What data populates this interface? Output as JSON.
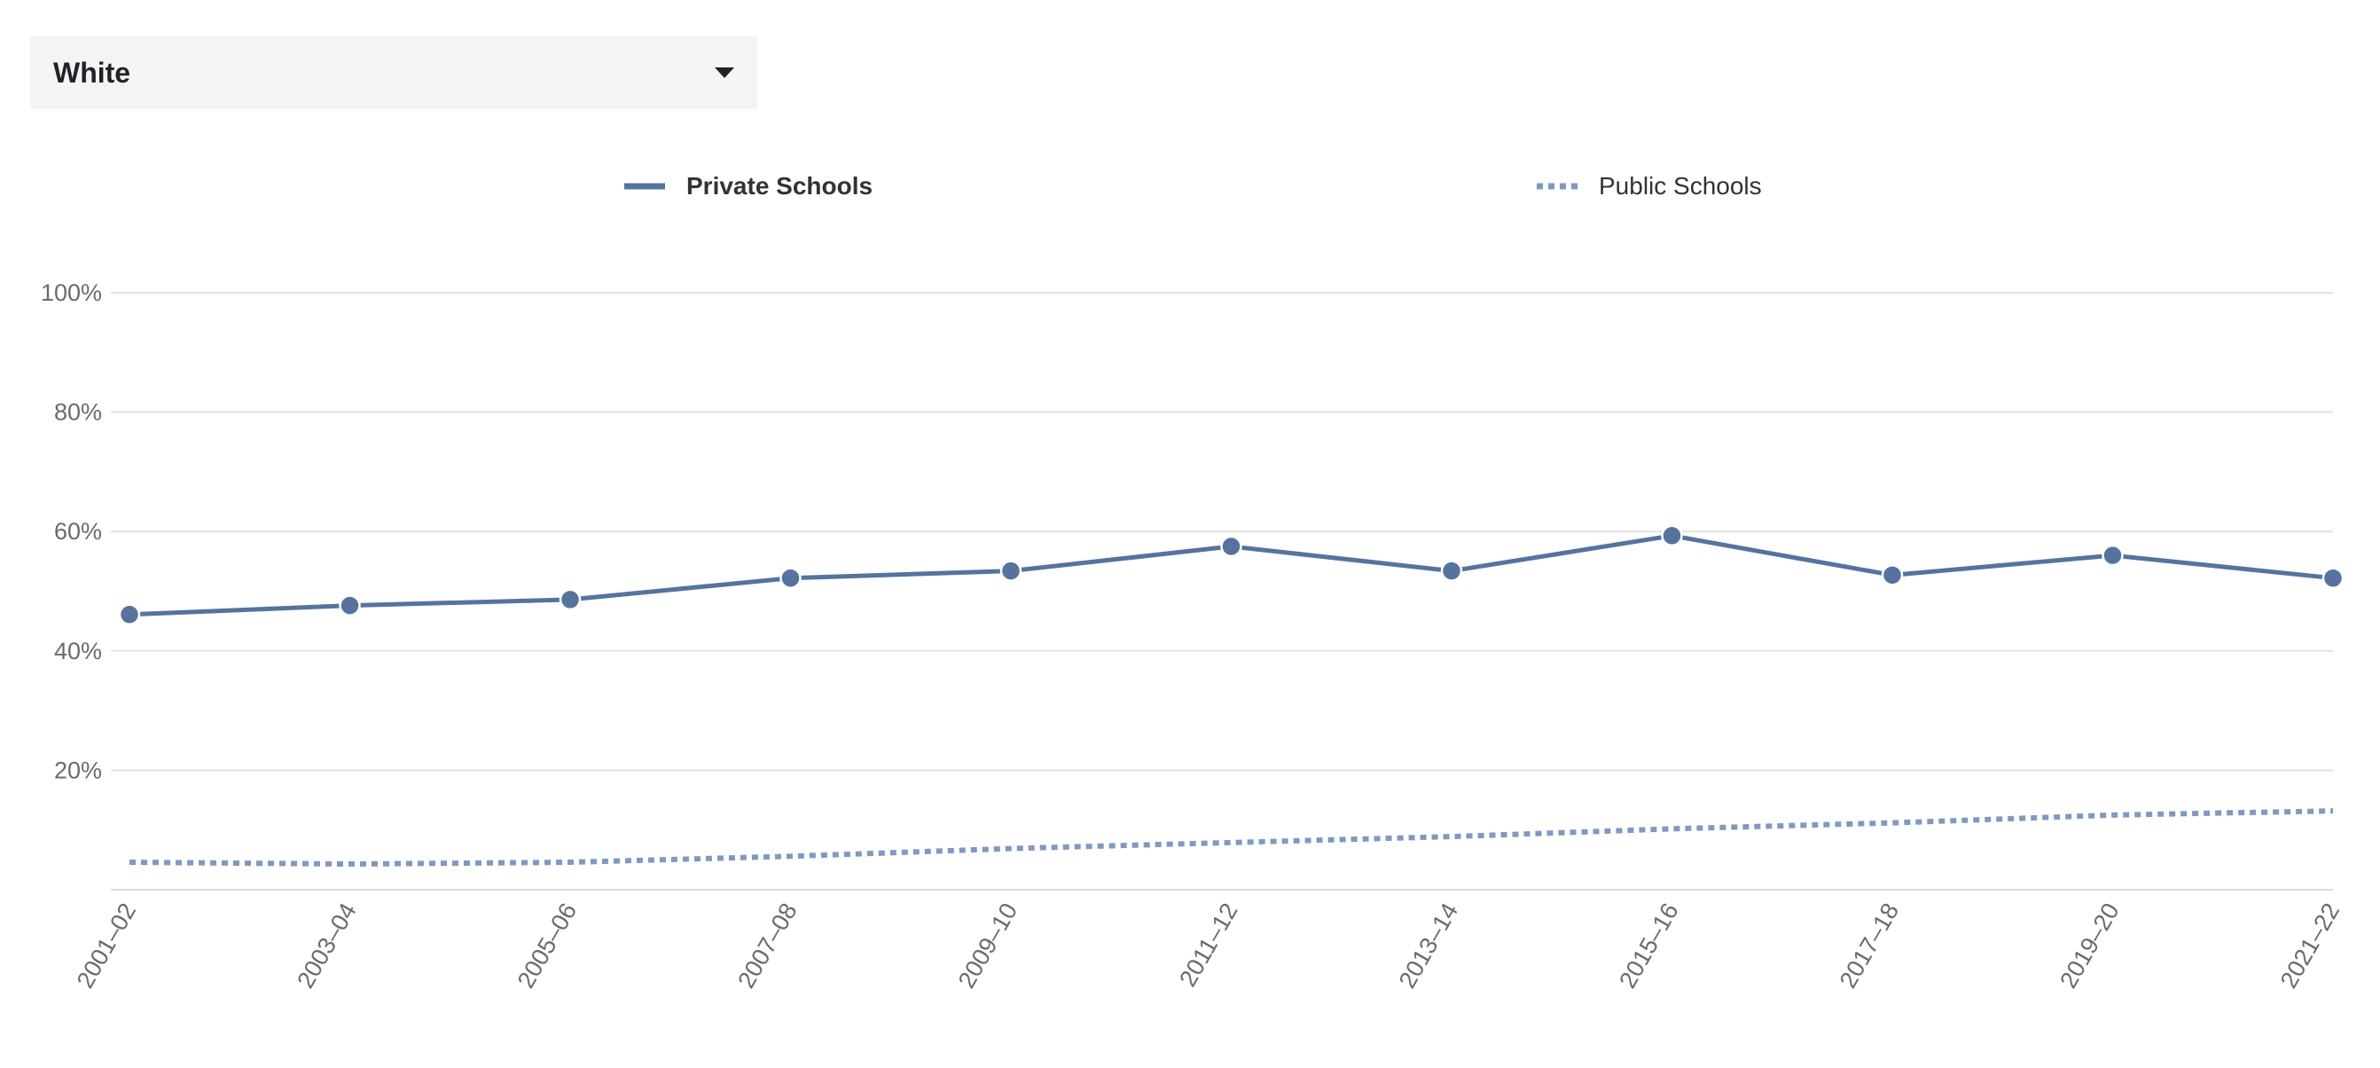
{
  "filter": {
    "selected": "White"
  },
  "chart_data": {
    "type": "line",
    "title": "",
    "xlabel": "",
    "ylabel": "",
    "categories": [
      "2001–02",
      "2003–04",
      "2005–06",
      "2007–08",
      "2009–10",
      "2011–12",
      "2013–14",
      "2015–16",
      "2017–18",
      "2019–20",
      "2021–22"
    ],
    "series": [
      {
        "name": "Private Schools",
        "style": "solid",
        "markers": true,
        "color": "#56739f",
        "values": [
          46.1,
          47.6,
          48.6,
          52.2,
          53.4,
          57.5,
          53.4,
          59.3,
          52.7,
          56.0,
          52.2
        ]
      },
      {
        "name": "Public Schools",
        "style": "dotted",
        "markers": false,
        "color": "#7f99c0",
        "values": [
          4.6,
          4.3,
          4.6,
          5.6,
          6.9,
          7.9,
          8.9,
          10.2,
          11.2,
          12.5,
          13.2
        ]
      }
    ],
    "ylim": [
      0,
      100
    ],
    "yticks": [
      20,
      40,
      60,
      80,
      100
    ],
    "ytick_labels": [
      "20%",
      "40%",
      "60%",
      "80%",
      "100%"
    ],
    "grid": true,
    "legend": "top-center"
  }
}
